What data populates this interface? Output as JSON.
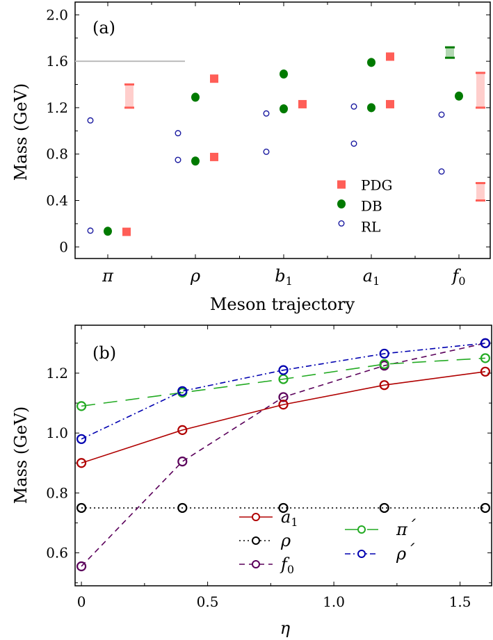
{
  "chart_data": [
    {
      "type": "scatter",
      "panel_label": "(a)",
      "xlabel": "Meson trajectory",
      "ylabel": "Mass (GeV)",
      "ylim": [
        -0.1,
        2.11
      ],
      "yticks": [
        "0",
        "0.4",
        "0.8",
        "1.2",
        "1.6",
        "2.0"
      ],
      "categories": [
        "π",
        "ρ",
        "b1",
        "a1",
        "f0"
      ],
      "legend_position": "lower-right",
      "reference_line": {
        "y": 1.6,
        "color": "#bbbbbb"
      },
      "series": [
        {
          "name": "PDG",
          "marker": "square",
          "color": "#ff5e57",
          "points": [
            [
              0,
              0.13
            ],
            [
              1,
              0.775
            ],
            [
              1,
              1.45
            ],
            [
              2,
              1.23
            ],
            [
              3,
              1.23
            ],
            [
              3,
              1.64
            ]
          ]
        },
        {
          "name": "DB",
          "marker": "filled-circle",
          "color": "#007a00",
          "points": [
            [
              0,
              0.135
            ],
            [
              1,
              0.74
            ],
            [
              1,
              1.29
            ],
            [
              2,
              1.19
            ],
            [
              2,
              1.49
            ],
            [
              3,
              1.2
            ],
            [
              3,
              1.59
            ],
            [
              4,
              1.3
            ]
          ]
        },
        {
          "name": "RL",
          "marker": "open-circle",
          "color": "#1a1aa0",
          "points": [
            [
              0,
              0.14
            ],
            [
              0,
              1.09
            ],
            [
              1,
              0.75
            ],
            [
              1,
              0.98
            ],
            [
              2,
              0.82
            ],
            [
              2,
              1.15
            ],
            [
              3,
              0.89
            ],
            [
              3,
              1.21
            ],
            [
              4,
              0.65
            ],
            [
              4,
              1.14
            ]
          ]
        }
      ],
      "bands": [
        {
          "category": 0,
          "low": 1.2,
          "high": 1.4,
          "color": "#ff5e57"
        },
        {
          "category": 4,
          "low": 1.2,
          "high": 1.5,
          "color": "#ff5e57"
        },
        {
          "category": 4,
          "low": 0.4,
          "high": 0.55,
          "color": "#ff5e57"
        },
        {
          "category": 4,
          "low": 1.63,
          "high": 1.72,
          "color": "#007a00"
        }
      ]
    },
    {
      "type": "line",
      "panel_label": "(b)",
      "xlabel": "η",
      "ylabel": "Mass (GeV)",
      "xlim": [
        -0.025,
        1.625
      ],
      "ylim": [
        0.49,
        1.36
      ],
      "xticks": [
        "0",
        "0.5",
        "1.0",
        "1.5"
      ],
      "yticks": [
        "0.6",
        "0.8",
        "1.0",
        "1.2"
      ],
      "x": [
        0,
        0.4,
        0.8,
        1.2,
        1.6
      ],
      "series": [
        {
          "name": "a",
          "sub": "1",
          "prime": "",
          "color": "#b00000",
          "dash": "",
          "values": [
            0.9,
            1.01,
            1.095,
            1.16,
            1.205
          ]
        },
        {
          "name": "ρ",
          "sub": "",
          "prime": "",
          "color": "#000000",
          "dash": "2,4",
          "values": [
            0.75,
            0.75,
            0.75,
            0.75,
            0.75
          ]
        },
        {
          "name": "f",
          "sub": "0",
          "prime": "",
          "color": "#5a005a",
          "dash": "8,6",
          "values": [
            0.555,
            0.905,
            1.12,
            1.225,
            1.3
          ]
        },
        {
          "name": "π",
          "sub": "",
          "prime": "´",
          "color": "#22aa22",
          "dash": "20,12",
          "values": [
            1.09,
            1.135,
            1.18,
            1.23,
            1.25
          ]
        },
        {
          "name": "ρ",
          "sub": "",
          "prime": "´",
          "color": "#0000b0",
          "dash": "8,4,2,4",
          "values": [
            0.98,
            1.14,
            1.21,
            1.265,
            1.3
          ]
        }
      ]
    }
  ]
}
